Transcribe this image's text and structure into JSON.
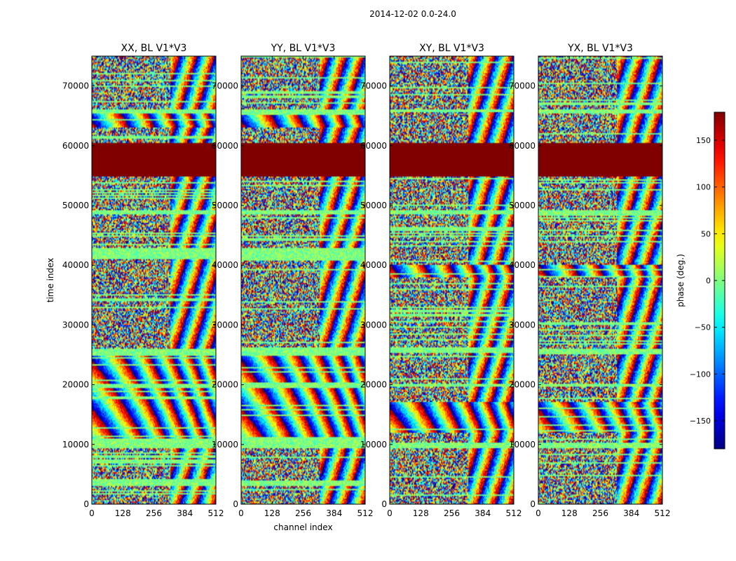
{
  "figure": {
    "suptitle": "2014-12-02 0.0-24.0"
  },
  "chart_data": [
    {
      "type": "heatmap",
      "title": "XX, BL V1*V3",
      "xlabel": "",
      "ylabel": "time index",
      "xlim": [
        0,
        512
      ],
      "ylim": [
        0,
        75000
      ],
      "xticks": [
        "0",
        "128",
        "256",
        "384",
        "512"
      ],
      "yticks": [
        "0",
        "10000",
        "20000",
        "30000",
        "40000",
        "50000",
        "60000",
        "70000"
      ],
      "value_range": [
        -180,
        180
      ],
      "flagged_band": [
        54800,
        60500
      ],
      "quiet_bands": [
        [
          3000,
          4000
        ],
        [
          9300,
          11000
        ],
        [
          19400,
          20200
        ],
        [
          24800,
          26000
        ],
        [
          41000,
          42800
        ],
        [
          48400,
          49200
        ],
        [
          65500,
          66200
        ]
      ],
      "fringe_regions": [
        [
          11000,
          19400
        ],
        [
          20200,
          24800
        ],
        [
          63000,
          65500
        ]
      ]
    },
    {
      "type": "heatmap",
      "title": "YY, BL V1*V3",
      "xlabel": "channel index",
      "ylabel": "",
      "xlim": [
        0,
        512
      ],
      "ylim": [
        0,
        75000
      ],
      "xticks": [
        "0",
        "128",
        "256",
        "384",
        "512"
      ],
      "yticks": [
        "0",
        "10000",
        "20000",
        "30000",
        "40000",
        "50000",
        "60000",
        "70000"
      ],
      "value_range": [
        -180,
        180
      ],
      "flagged_band": [
        54800,
        60500
      ],
      "quiet_bands": [
        [
          3000,
          4000
        ],
        [
          9300,
          11000
        ],
        [
          19400,
          20200
        ],
        [
          24800,
          26000
        ],
        [
          41000,
          42800
        ],
        [
          48400,
          49200
        ],
        [
          65500,
          66200
        ]
      ],
      "fringe_regions": [
        [
          11000,
          19400
        ],
        [
          20200,
          24800
        ],
        [
          63000,
          65500
        ]
      ]
    },
    {
      "type": "heatmap",
      "title": "XY, BL V1*V3",
      "xlabel": "",
      "ylabel": "",
      "xlim": [
        0,
        512
      ],
      "ylim": [
        0,
        75000
      ],
      "xticks": [
        "0",
        "128",
        "256",
        "384",
        "512"
      ],
      "yticks": [
        "0",
        "10000",
        "20000",
        "30000",
        "40000",
        "50000",
        "60000",
        "70000"
      ],
      "value_range": [
        -180,
        180
      ],
      "flagged_band": [
        54800,
        60500
      ],
      "quiet_bands": [
        [
          9300,
          10200
        ],
        [
          19600,
          20200
        ],
        [
          25300,
          26000
        ],
        [
          48600,
          49200
        ],
        [
          65600,
          66200
        ]
      ],
      "fringe_regions": [
        [
          12000,
          17000
        ],
        [
          38000,
          40000
        ]
      ]
    },
    {
      "type": "heatmap",
      "title": "YX, BL V1*V3",
      "xlabel": "",
      "ylabel": "",
      "xlim": [
        0,
        512
      ],
      "ylim": [
        0,
        75000
      ],
      "xticks": [
        "0",
        "128",
        "256",
        "384",
        "512"
      ],
      "yticks": [
        "0",
        "10000",
        "20000",
        "30000",
        "40000",
        "50000",
        "60000",
        "70000"
      ],
      "value_range": [
        -180,
        180
      ],
      "flagged_band": [
        54800,
        60500
      ],
      "quiet_bands": [
        [
          9300,
          10200
        ],
        [
          19600,
          20200
        ],
        [
          25300,
          26000
        ],
        [
          48600,
          49200
        ],
        [
          65600,
          66200
        ]
      ],
      "fringe_regions": [
        [
          12000,
          17000
        ],
        [
          38000,
          40000
        ]
      ]
    }
  ],
  "colorbar": {
    "label": "phase (deg.)",
    "colormap": "jet",
    "range": [
      -180,
      180
    ],
    "ticks": [
      -150,
      -100,
      -50,
      0,
      50,
      100,
      150
    ],
    "tick_labels": [
      "−150",
      "−100",
      "−50",
      "0",
      "50",
      "100",
      "150"
    ],
    "colors": [
      "#00007f",
      "#0000ff",
      "#007fff",
      "#00ffff",
      "#7fff7f",
      "#ffff00",
      "#ff7f00",
      "#ff0000",
      "#7f0000"
    ]
  }
}
